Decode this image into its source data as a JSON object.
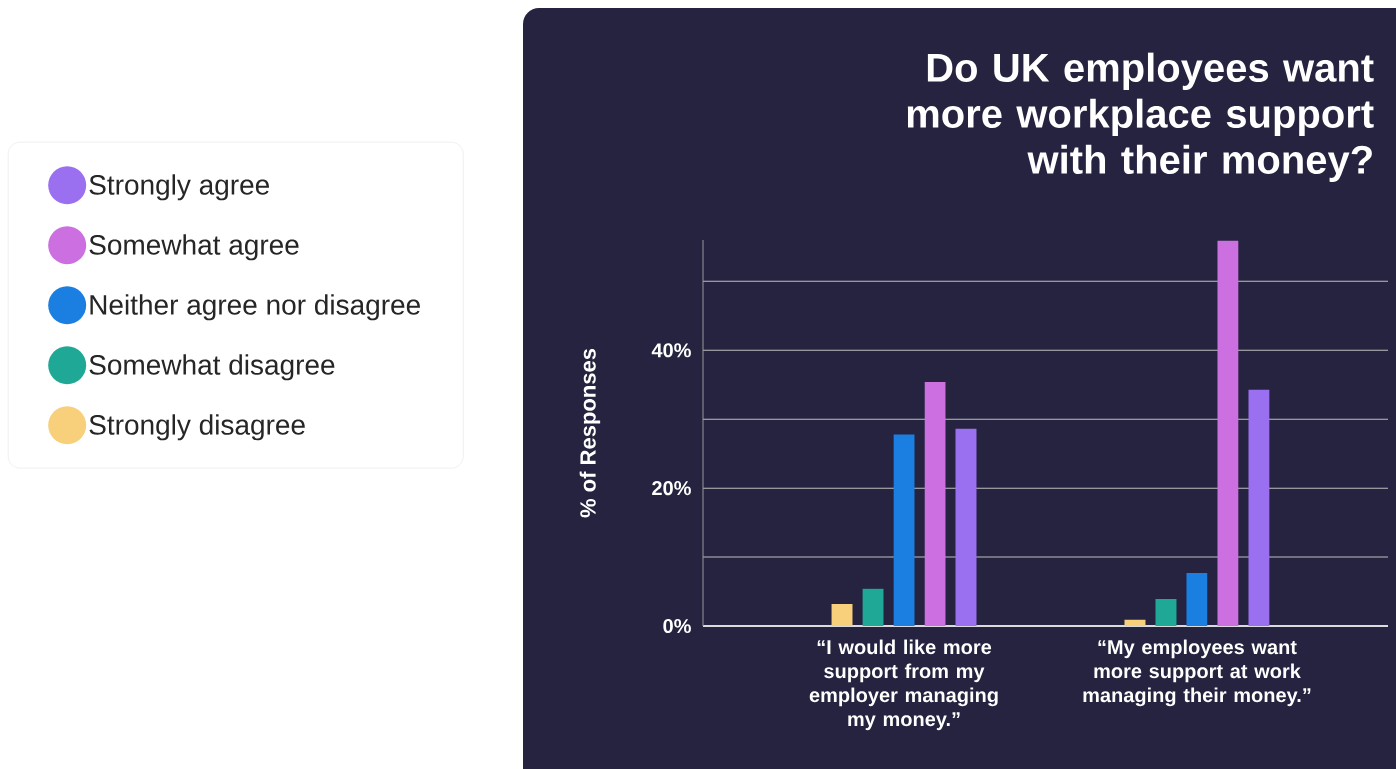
{
  "chart_data": {
    "type": "bar",
    "title": "Do UK employees want more workplace support with their money?",
    "ylabel": "% of Responses",
    "categories": [
      "“I would like more support from my employer managing my money.”",
      "“My employees want more support at work managing their money.”"
    ],
    "series": [
      {
        "name": "Strongly agree",
        "color": "#9a6ff0",
        "values": [
          28.6,
          34.3
        ]
      },
      {
        "name": "Somewhat agree",
        "color": "#cc6fe0",
        "values": [
          35.4,
          55.9
        ]
      },
      {
        "name": "Neither agree nor disagree",
        "color": "#1a7fe0",
        "values": [
          27.8,
          7.7
        ]
      },
      {
        "name": "Somewhat disagree",
        "color": "#1fa896",
        "values": [
          5.4,
          3.9
        ]
      },
      {
        "name": "Strongly disagree",
        "color": "#f8cf7a",
        "values": [
          3.2,
          0.9
        ]
      }
    ],
    "ylim": [
      0,
      56
    ],
    "yticks": [
      {
        "value": 0,
        "label": "0%"
      },
      {
        "value": 10,
        "label": null
      },
      {
        "value": 20,
        "label": "20%"
      },
      {
        "value": 30,
        "label": null
      },
      {
        "value": 40,
        "label": "40%"
      },
      {
        "value": 50,
        "label": null
      }
    ],
    "grid": "y",
    "legend": "left"
  }
}
